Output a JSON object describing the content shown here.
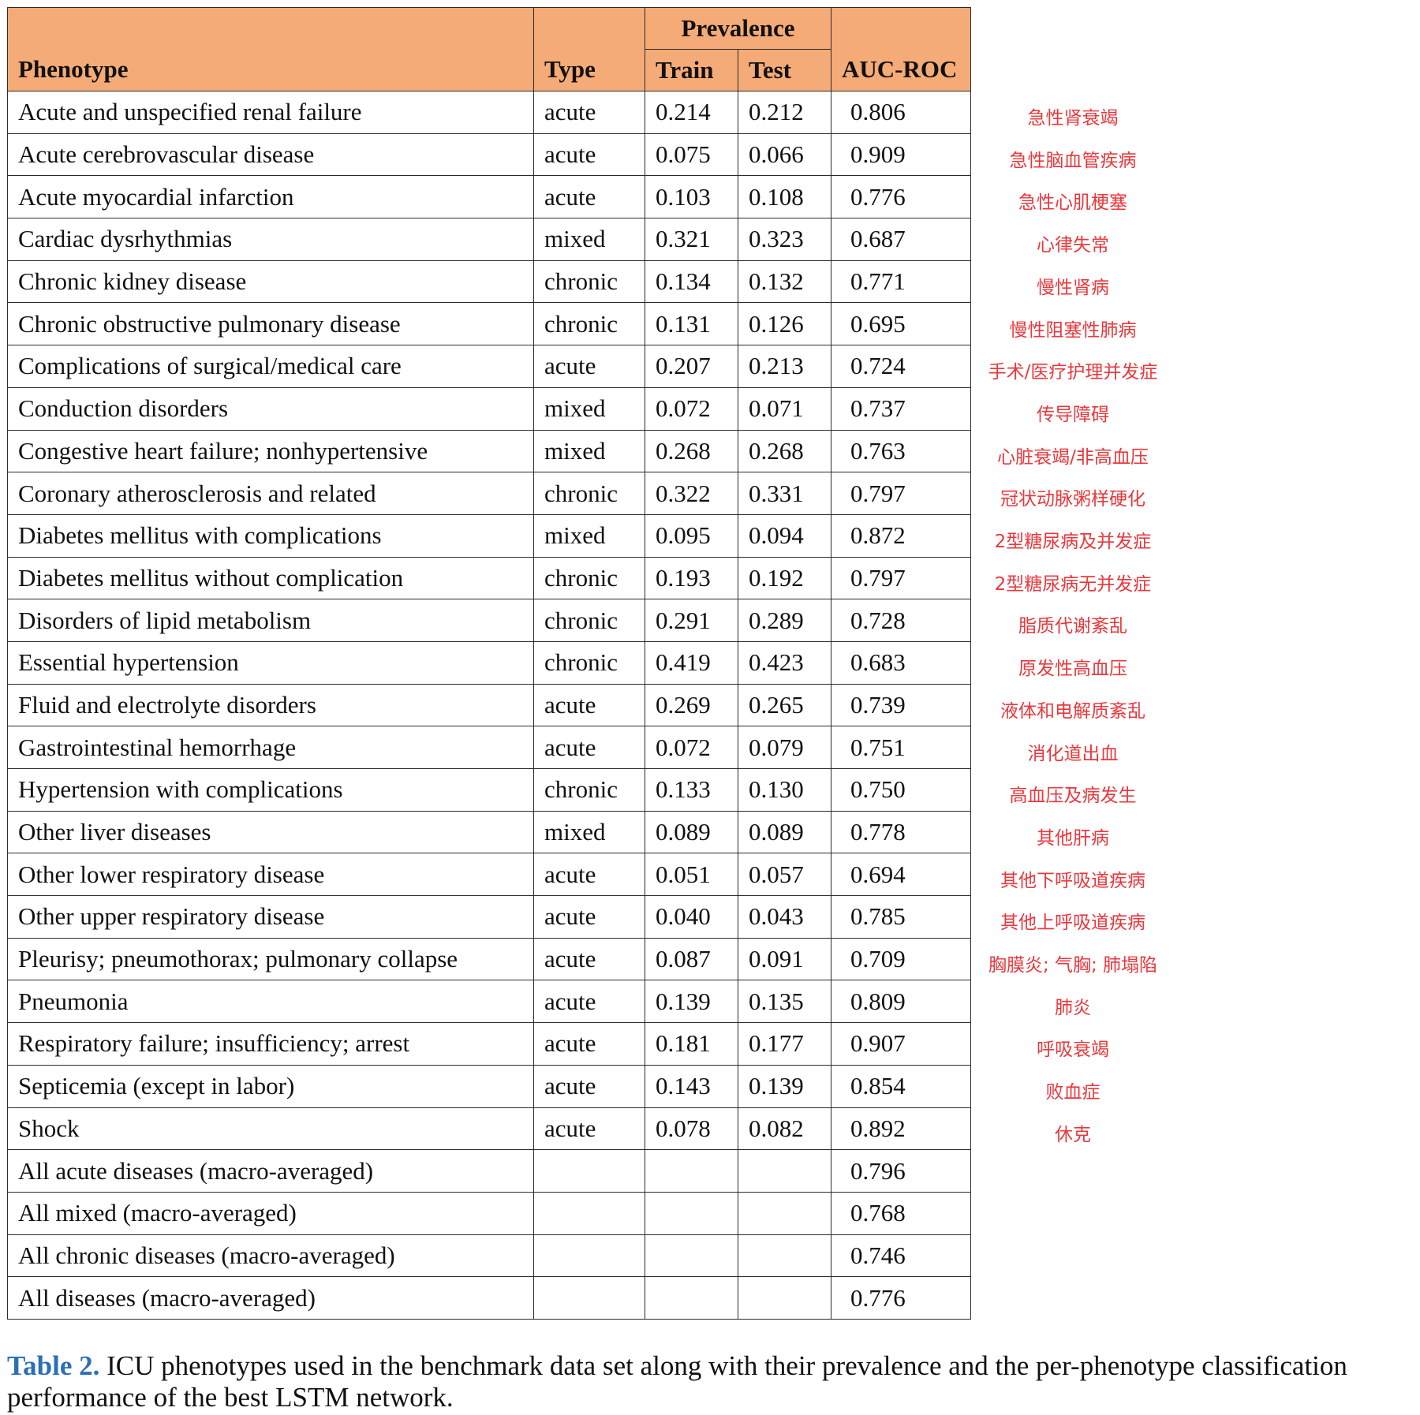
{
  "headers": {
    "phenotype": "Phenotype",
    "type": "Type",
    "prevalence": "Prevalence",
    "train": "Train",
    "test": "Test",
    "auc": "AUC-ROC"
  },
  "rows": [
    {
      "phenotype": "Acute and unspecified renal failure",
      "type": "acute",
      "train": "0.214",
      "test": "0.212",
      "auc": "0.806",
      "cn": "急性肾衰竭"
    },
    {
      "phenotype": "Acute cerebrovascular disease",
      "type": "acute",
      "train": "0.075",
      "test": "0.066",
      "auc": "0.909",
      "cn": "急性脑血管疾病"
    },
    {
      "phenotype": "Acute myocardial infarction",
      "type": "acute",
      "train": "0.103",
      "test": "0.108",
      "auc": "0.776",
      "cn": "急性心肌梗塞"
    },
    {
      "phenotype": "Cardiac dysrhythmias",
      "type": "mixed",
      "train": "0.321",
      "test": "0.323",
      "auc": "0.687",
      "cn": "心律失常"
    },
    {
      "phenotype": "Chronic kidney disease",
      "type": "chronic",
      "train": "0.134",
      "test": "0.132",
      "auc": "0.771",
      "cn": "慢性肾病"
    },
    {
      "phenotype": "Chronic obstructive pulmonary disease",
      "type": "chronic",
      "train": "0.131",
      "test": "0.126",
      "auc": "0.695",
      "cn": "慢性阻塞性肺病"
    },
    {
      "phenotype": "Complications of surgical/medical care",
      "type": "acute",
      "train": "0.207",
      "test": "0.213",
      "auc": "0.724",
      "cn": "手术/医疗护理并发症"
    },
    {
      "phenotype": "Conduction disorders",
      "type": "mixed",
      "train": "0.072",
      "test": "0.071",
      "auc": "0.737",
      "cn": "传导障碍"
    },
    {
      "phenotype": "Congestive heart failure; nonhypertensive",
      "type": "mixed",
      "train": "0.268",
      "test": "0.268",
      "auc": "0.763",
      "cn": "心脏衰竭/非高血压"
    },
    {
      "phenotype": "Coronary atherosclerosis and related",
      "type": "chronic",
      "train": "0.322",
      "test": "0.331",
      "auc": "0.797",
      "cn": "冠状动脉粥样硬化"
    },
    {
      "phenotype": "Diabetes mellitus with complications",
      "type": "mixed",
      "train": "0.095",
      "test": "0.094",
      "auc": "0.872",
      "cn": "2型糖尿病及并发症"
    },
    {
      "phenotype": "Diabetes mellitus without complication",
      "type": "chronic",
      "train": "0.193",
      "test": "0.192",
      "auc": "0.797",
      "cn": "2型糖尿病无并发症"
    },
    {
      "phenotype": "Disorders of lipid metabolism",
      "type": "chronic",
      "train": "0.291",
      "test": "0.289",
      "auc": "0.728",
      "cn": "脂质代谢紊乱"
    },
    {
      "phenotype": "Essential hypertension",
      "type": "chronic",
      "train": "0.419",
      "test": "0.423",
      "auc": "0.683",
      "cn": "原发性高血压"
    },
    {
      "phenotype": "Fluid and electrolyte disorders",
      "type": "acute",
      "train": "0.269",
      "test": "0.265",
      "auc": "0.739",
      "cn": "液体和电解质紊乱"
    },
    {
      "phenotype": "Gastrointestinal hemorrhage",
      "type": "acute",
      "train": "0.072",
      "test": "0.079",
      "auc": "0.751",
      "cn": "消化道出血"
    },
    {
      "phenotype": "Hypertension with complications",
      "type": "chronic",
      "train": "0.133",
      "test": "0.130",
      "auc": "0.750",
      "cn": "高血压及病发生"
    },
    {
      "phenotype": "Other liver diseases",
      "type": "mixed",
      "train": "0.089",
      "test": "0.089",
      "auc": "0.778",
      "cn": "其他肝病"
    },
    {
      "phenotype": "Other lower respiratory disease",
      "type": "acute",
      "train": "0.051",
      "test": "0.057",
      "auc": "0.694",
      "cn": "其他下呼吸道疾病"
    },
    {
      "phenotype": "Other upper respiratory disease",
      "type": "acute",
      "train": "0.040",
      "test": "0.043",
      "auc": "0.785",
      "cn": "其他上呼吸道疾病"
    },
    {
      "phenotype": "Pleurisy; pneumothorax; pulmonary collapse",
      "type": "acute",
      "train": "0.087",
      "test": "0.091",
      "auc": "0.709",
      "cn": "胸膜炎; 气胸; 肺塌陷"
    },
    {
      "phenotype": "Pneumonia",
      "type": "acute",
      "train": "0.139",
      "test": "0.135",
      "auc": "0.809",
      "cn": "肺炎"
    },
    {
      "phenotype": "Respiratory failure; insufficiency; arrest",
      "type": "acute",
      "train": "0.181",
      "test": "0.177",
      "auc": "0.907",
      "cn": "呼吸衰竭"
    },
    {
      "phenotype": "Septicemia (except in labor)",
      "type": "acute",
      "train": "0.143",
      "test": "0.139",
      "auc": "0.854",
      "cn": "败血症"
    },
    {
      "phenotype": "Shock",
      "type": "acute",
      "train": "0.078",
      "test": "0.082",
      "auc": "0.892",
      "cn": "休克"
    },
    {
      "phenotype": "All acute diseases (macro-averaged)",
      "type": "",
      "train": "",
      "test": "",
      "auc": "0.796"
    },
    {
      "phenotype": "All mixed (macro-averaged)",
      "type": "",
      "train": "",
      "test": "",
      "auc": "0.768"
    },
    {
      "phenotype": "All chronic diseases (macro-averaged)",
      "type": "",
      "train": "",
      "test": "",
      "auc": "0.746"
    },
    {
      "phenotype": "All diseases (macro-averaged)",
      "type": "",
      "train": "",
      "test": "",
      "auc": "0.776"
    }
  ],
  "caption": {
    "label": "Table 2.",
    "text": "ICU phenotypes used in the benchmark data set along with their prevalence and the per-phenotype classification performance of the best LSTM network."
  }
}
